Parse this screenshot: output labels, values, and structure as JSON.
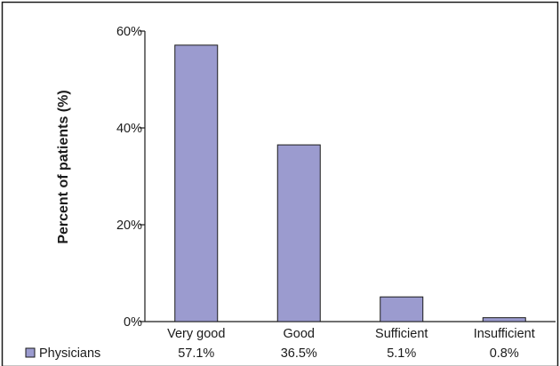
{
  "chart_data": {
    "type": "bar",
    "title": "",
    "xlabel": "",
    "ylabel": "Percent of patients (%)",
    "categories": [
      "Very good",
      "Good",
      "Sufficient",
      "Insufficient"
    ],
    "series": [
      {
        "name": "Physicians",
        "values": [
          57.1,
          36.5,
          5.1,
          0.8
        ],
        "value_labels": [
          "57.1%",
          "36.5%",
          "5.1%",
          "0.8%"
        ],
        "color": "#9b9bcf"
      }
    ],
    "ylim": [
      0,
      60
    ],
    "yticks": [
      0,
      20,
      40,
      60
    ],
    "ytick_labels": [
      "0%",
      "20%",
      "40%",
      "60%"
    ],
    "grid": false,
    "legend_placement": "bottom-left"
  }
}
